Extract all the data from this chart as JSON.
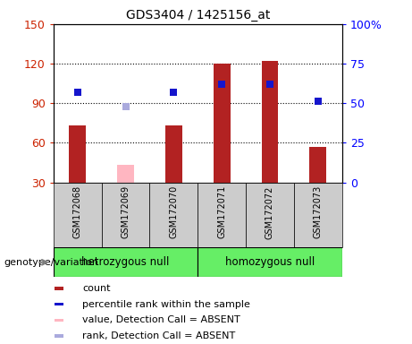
{
  "title": "GDS3404 / 1425156_at",
  "samples": [
    "GSM172068",
    "GSM172069",
    "GSM172070",
    "GSM172071",
    "GSM172072",
    "GSM172073"
  ],
  "counts": [
    73,
    null,
    73,
    120,
    122,
    57
  ],
  "counts_absent": [
    null,
    43,
    null,
    null,
    null,
    null
  ],
  "percentile_ranks": [
    57,
    null,
    57,
    62,
    62,
    51
  ],
  "percentile_ranks_absent": [
    null,
    48,
    null,
    null,
    null,
    null
  ],
  "ylim_left": [
    30,
    150
  ],
  "ylim_right": [
    0,
    100
  ],
  "yticks_left": [
    30,
    60,
    90,
    120,
    150
  ],
  "yticks_right": [
    0,
    25,
    50,
    75,
    100
  ],
  "bar_color": "#B22222",
  "bar_absent_color": "#FFB6C1",
  "marker_color": "#1515CC",
  "marker_absent_color": "#AAAADD",
  "group1_label": "hetrozygous null",
  "group2_label": "homozygous null",
  "group1_color": "#66EE66",
  "group2_color": "#66EE66",
  "genotype_label": "genotype/variation",
  "legend_items": [
    {
      "label": "count",
      "color": "#B22222",
      "shape": "square"
    },
    {
      "label": "percentile rank within the sample",
      "color": "#1515CC",
      "shape": "square"
    },
    {
      "label": "value, Detection Call = ABSENT",
      "color": "#FFB6C1",
      "shape": "square"
    },
    {
      "label": "rank, Detection Call = ABSENT",
      "color": "#AAAADD",
      "shape": "square"
    }
  ],
  "bar_width": 0.35,
  "background_color": "#ffffff",
  "xlabel_area_color": "#cccccc",
  "marker_size": 6,
  "n_group1": 3,
  "n_group2": 3
}
